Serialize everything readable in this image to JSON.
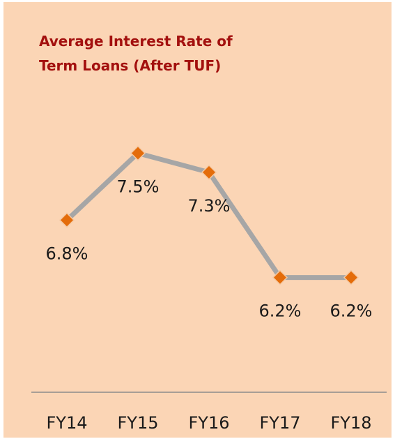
{
  "chart_data": {
    "type": "line",
    "title": [
      "Average Interest Rate of",
      "Term Loans (After TUF)"
    ],
    "categories": [
      "FY14",
      "FY15",
      "FY16",
      "FY17",
      "FY18"
    ],
    "series": [
      {
        "color": "#a6a6a6",
        "marker_color": "#e46c0a",
        "values": [
          6.8,
          7.5,
          7.3,
          6.2,
          6.2
        ],
        "value_labels": [
          "6.8%",
          "7.5%",
          "7.3%",
          "6.2%",
          "6.2%"
        ]
      }
    ],
    "ylim": [
      5,
      8
    ]
  }
}
